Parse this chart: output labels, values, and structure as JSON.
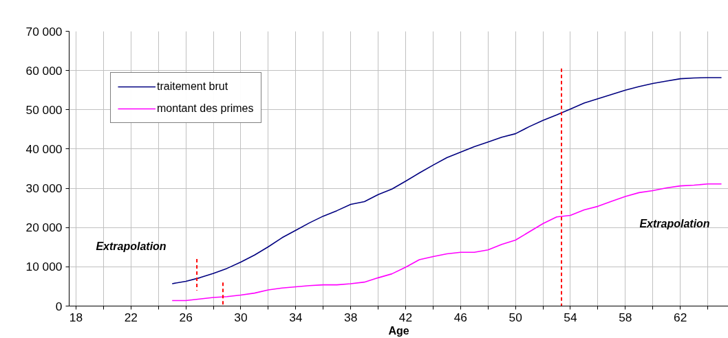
{
  "chart_data": {
    "type": "line",
    "xlabel": "Age",
    "x": [
      25,
      26,
      27,
      28,
      29,
      30,
      31,
      32,
      33,
      34,
      35,
      36,
      37,
      38,
      39,
      40,
      41,
      42,
      43,
      44,
      45,
      46,
      47,
      48,
      49,
      50,
      51,
      52,
      53,
      54,
      55,
      56,
      57,
      58,
      59,
      60,
      61,
      62,
      63,
      64,
      65
    ],
    "series": [
      {
        "name": "traitement brut",
        "color": "#000080",
        "values": [
          5700,
          6300,
          7200,
          8300,
          9600,
          11200,
          13000,
          15100,
          17400,
          19300,
          21200,
          22900,
          24300,
          25900,
          26600,
          28400,
          29800,
          31800,
          33900,
          35900,
          37800,
          39200,
          40600,
          41800,
          43000,
          43900,
          45700,
          47300,
          48700,
          50200,
          51700,
          52800,
          53900,
          55000,
          55900,
          56700,
          57300,
          57900,
          58100,
          58200,
          58200
        ]
      },
      {
        "name": "montant des primes",
        "color": "#ff00ff",
        "values": [
          1400,
          1400,
          1800,
          2200,
          2400,
          2800,
          3300,
          4100,
          4600,
          4900,
          5200,
          5400,
          5400,
          5700,
          6100,
          7200,
          8200,
          9900,
          11800,
          12600,
          13300,
          13700,
          13700,
          14300,
          15700,
          16800,
          18900,
          21000,
          22700,
          23100,
          24500,
          25400,
          26700,
          27900,
          28900,
          29400,
          30100,
          30600,
          30800,
          31100,
          31100
        ]
      },
      {
        "type": "line",
        "color": "#ff0000",
        "line_style": "dashed",
        "x": [
          26.8,
          26.8
        ],
        "values": [
          12000,
          4000
        ]
      },
      {
        "type": "line",
        "color": "#ff0000",
        "line_style": "dashed",
        "x": [
          28.7,
          28.7
        ],
        "values": [
          6000,
          0
        ]
      },
      {
        "type": "line",
        "color": "#ff0000",
        "line_style": "dashed",
        "x": [
          53.35,
          53.35
        ],
        "values": [
          60500,
          0
        ]
      }
    ],
    "annotations": [
      "Extrapolation",
      "Extrapolation"
    ],
    "xlim": [
      17.5,
      65.5
    ],
    "xticks": [
      18,
      {
        "value": 20,
        "label": null
      },
      22,
      {
        "value": 24,
        "label": null
      },
      26,
      {
        "value": 28,
        "label": null
      },
      30,
      {
        "value": 32,
        "label": null
      },
      34,
      {
        "value": 36,
        "label": null
      },
      38,
      {
        "value": 40,
        "label": null
      },
      42,
      {
        "value": 44,
        "label": null
      },
      46,
      {
        "value": 48,
        "label": null
      },
      50,
      {
        "value": 52,
        "label": null
      },
      54,
      {
        "value": 56,
        "label": null
      },
      58,
      {
        "value": 60,
        "label": null
      },
      62,
      {
        "value": 64,
        "label": null
      }
    ],
    "ylim": [
      0,
      70000
    ],
    "yticks": [
      0,
      {
        "value": 10000,
        "label": "10 000"
      },
      {
        "value": 20000,
        "label": "20 000"
      },
      {
        "value": 30000,
        "label": "30 000"
      },
      {
        "value": 40000,
        "label": "40 000"
      },
      {
        "value": 50000,
        "label": "50 000"
      },
      {
        "value": 60000,
        "label": "60 000"
      },
      {
        "value": 70000,
        "label": "70 000"
      }
    ],
    "grid": true,
    "legend": "top left",
    "line_style": "solid",
    "marker": "none"
  }
}
